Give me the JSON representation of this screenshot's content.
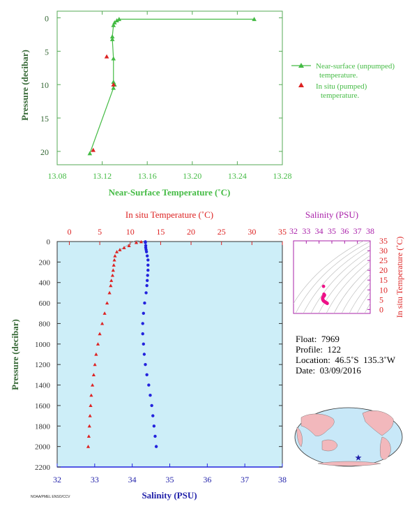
{
  "chart_data": [
    {
      "type": "line",
      "xlabel": "Near-Surface Temperature (˚C)",
      "ylabel": "Pressure (decibar)",
      "xlim": [
        13.08,
        13.28
      ],
      "ylim": [
        22,
        -1
      ],
      "x_ticks": [
        "13.08",
        "13.12",
        "13.16",
        "13.20",
        "13.24",
        "13.28"
      ],
      "y_ticks": [
        "0",
        "5",
        "10",
        "15",
        "20"
      ],
      "legend": [
        "Near-surface (unpumped) temperature.",
        "In situ (pumped) temperature."
      ],
      "legend_position": "right",
      "colors": {
        "unpumped": "#44bb44",
        "pumped": "#dd2222",
        "axis": "#55aa55"
      },
      "series": [
        {
          "name": "Near-surface (unpumped) temperature.",
          "style": "line-triangle",
          "x": [
            13.255,
            13.135,
            13.133,
            13.131,
            13.13,
            13.129,
            13.129,
            13.13,
            13.13,
            13.131,
            13.13,
            13.109
          ],
          "y": [
            0.2,
            0.2,
            0.4,
            0.7,
            1.1,
            2.8,
            3.2,
            6.1,
            9.6,
            10.0,
            10.5,
            20.3
          ]
        },
        {
          "name": "In situ (pumped) temperature.",
          "style": "triangle",
          "x": [
            13.124,
            13.13,
            13.112
          ],
          "y": [
            5.8,
            10.0,
            19.8
          ]
        }
      ]
    },
    {
      "type": "scatter",
      "ylabel": "Pressure (decibar)",
      "x_top_label": "In situ Temperature (˚C)",
      "x_bottom_label": "Salinity (PSU)",
      "temp_lim": [
        -2,
        35
      ],
      "sal_lim": [
        32,
        38
      ],
      "ylim": [
        2200,
        0
      ],
      "temp_ticks": [
        "0",
        "5",
        "10",
        "15",
        "20",
        "25",
        "30",
        "35"
      ],
      "sal_ticks": [
        "32",
        "33",
        "34",
        "35",
        "36",
        "37",
        "38"
      ],
      "y_ticks": [
        "0",
        "200",
        "400",
        "600",
        "800",
        "1000",
        "1200",
        "1400",
        "1600",
        "1800",
        "2000",
        "2200"
      ],
      "colors": {
        "temperature": "#dd2222",
        "salinity": "#2222dd",
        "background": "#cdeef8"
      },
      "series": [
        {
          "name": "In situ Temperature (˚C)",
          "marker": "triangle",
          "pressure": [
            2,
            10,
            40,
            60,
            80,
            100,
            140,
            180,
            230,
            280,
            330,
            380,
            430,
            500,
            600,
            700,
            800,
            900,
            1000,
            1100,
            1200,
            1300,
            1400,
            1500,
            1600,
            1700,
            1800,
            1900,
            2000
          ],
          "values": [
            11.8,
            11.0,
            9.8,
            9.0,
            8.3,
            7.8,
            7.5,
            7.4,
            7.3,
            7.2,
            7.1,
            6.9,
            6.8,
            6.6,
            6.2,
            5.8,
            5.4,
            5.0,
            4.7,
            4.4,
            4.2,
            4.0,
            3.8,
            3.6,
            3.5,
            3.4,
            3.3,
            3.2,
            3.1
          ]
        },
        {
          "name": "Salinity (PSU)",
          "marker": "dot",
          "pressure": [
            2,
            10,
            40,
            60,
            80,
            100,
            140,
            180,
            230,
            280,
            330,
            380,
            430,
            500,
            600,
            700,
            800,
            900,
            1000,
            1100,
            1200,
            1300,
            1400,
            1500,
            1600,
            1700,
            1800,
            1900,
            2000
          ],
          "values": [
            34.35,
            34.35,
            34.36,
            34.36,
            34.37,
            34.38,
            34.4,
            34.42,
            34.42,
            34.42,
            34.41,
            34.4,
            34.39,
            34.37,
            34.33,
            34.3,
            34.28,
            34.28,
            34.3,
            34.32,
            34.35,
            34.39,
            34.44,
            34.48,
            34.52,
            34.55,
            34.58,
            34.61,
            34.64
          ]
        }
      ]
    },
    {
      "type": "scatter",
      "title": "Salinity (PSU)",
      "ylabel": "In situ Temperature (˚C)",
      "sal_lim": [
        32,
        38
      ],
      "temp_lim": [
        -2,
        35
      ],
      "sal_ticks": [
        "32",
        "33",
        "34",
        "35",
        "36",
        "37",
        "38"
      ],
      "temp_ticks": [
        "0",
        "5",
        "10",
        "15",
        "20",
        "25",
        "30",
        "35"
      ],
      "colors": {
        "points": "#ee1188",
        "axis": "#aa22aa"
      },
      "points": {
        "salinity": [
          34.35,
          34.38,
          34.4,
          34.42,
          34.42,
          34.41,
          34.4,
          34.39,
          34.37,
          34.33,
          34.3,
          34.28,
          34.28,
          34.3,
          34.32,
          34.35,
          34.39,
          34.44,
          34.48,
          34.52,
          34.55,
          34.58,
          34.61,
          34.64
        ],
        "temperature": [
          11.8,
          7.8,
          7.5,
          7.4,
          7.3,
          7.2,
          7.1,
          6.9,
          6.8,
          6.6,
          6.2,
          5.8,
          5.4,
          5.0,
          4.7,
          4.4,
          4.2,
          4.0,
          3.8,
          3.6,
          3.5,
          3.4,
          3.3,
          3.1
        ]
      }
    }
  ],
  "float_info": {
    "float": "Float:  7969",
    "profile": "Profile:  122",
    "location": "Location:  46.5˚S  135.3˚W",
    "date": "Date:  03/09/2016"
  },
  "credit": "NOAA/PMEL ENSO/CCV",
  "map": {
    "location_marker": "star",
    "marker_color": "#2222aa",
    "land_color": "#f2b8bc",
    "ocean_color": "#c8e8f8"
  }
}
